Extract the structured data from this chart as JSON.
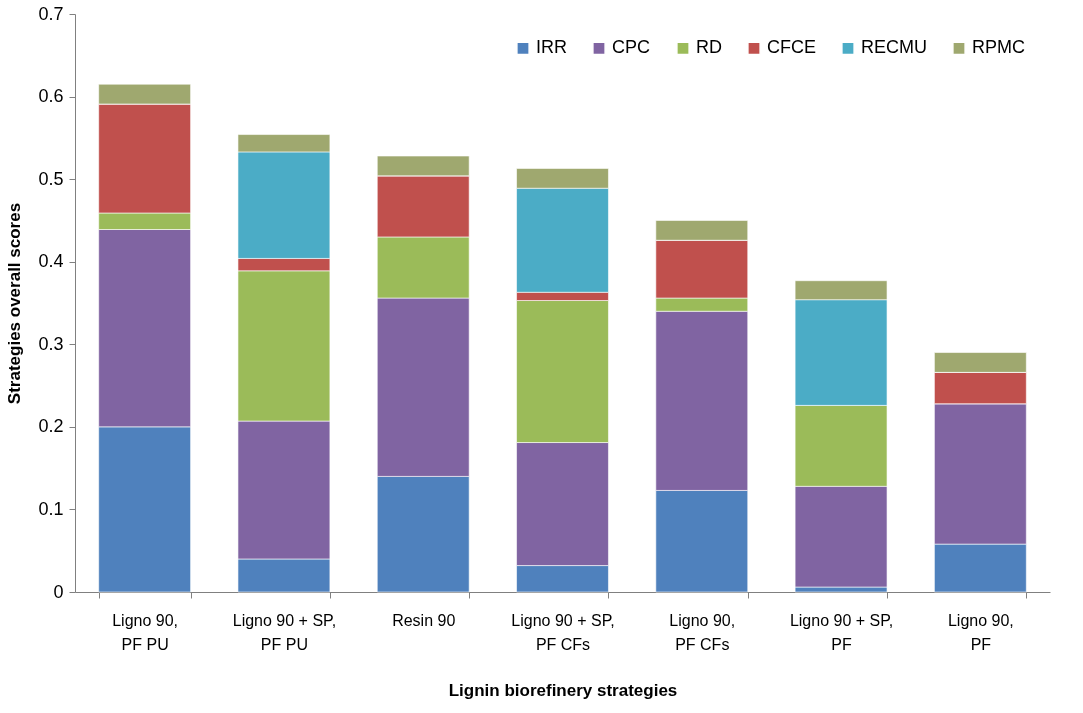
{
  "chart_data": {
    "type": "bar",
    "stacked": true,
    "xlabel": "Lignin biorefinery strategies",
    "ylabel": "Strategies overall scores",
    "categories": [
      "Ligno 90,\nPF PU",
      "Ligno 90 + SP,\nPF PU",
      "Resin 90",
      "Ligno 90 + SP,\nPF CFs",
      "Ligno 90,\nPF CFs",
      "Ligno 90 + SP,\nPF",
      "Ligno 90,\nPF"
    ],
    "series": [
      {
        "name": "IRR",
        "color": "#4f81bd",
        "values": [
          0.2,
          0.04,
          0.14,
          0.032,
          0.123,
          0.006,
          0.058
        ]
      },
      {
        "name": "CPC",
        "color": "#8064a2",
        "values": [
          0.239,
          0.167,
          0.216,
          0.149,
          0.217,
          0.122,
          0.17
        ]
      },
      {
        "name": "RD",
        "color": "#9bbb59",
        "values": [
          0.02,
          0.182,
          0.074,
          0.172,
          0.016,
          0.098,
          0
        ]
      },
      {
        "name": "CFCE",
        "color": "#c0504d",
        "values": [
          0.132,
          0.015,
          0.074,
          0.01,
          0.07,
          0,
          0.038
        ]
      },
      {
        "name": "RECMU",
        "color": "#4bacc6",
        "values": [
          0,
          0.129,
          0,
          0.126,
          0,
          0.128,
          0
        ]
      },
      {
        "name": "RPMC",
        "color": "#9fa86f",
        "values": [
          0.024,
          0.021,
          0.024,
          0.024,
          0.024,
          0.023,
          0.024
        ]
      }
    ],
    "ylim": [
      0,
      0.7
    ],
    "yticks": [
      0,
      0.1,
      0.2,
      0.3,
      0.4,
      0.5,
      0.6,
      0.7
    ],
    "grid": false,
    "legend": "top right"
  }
}
